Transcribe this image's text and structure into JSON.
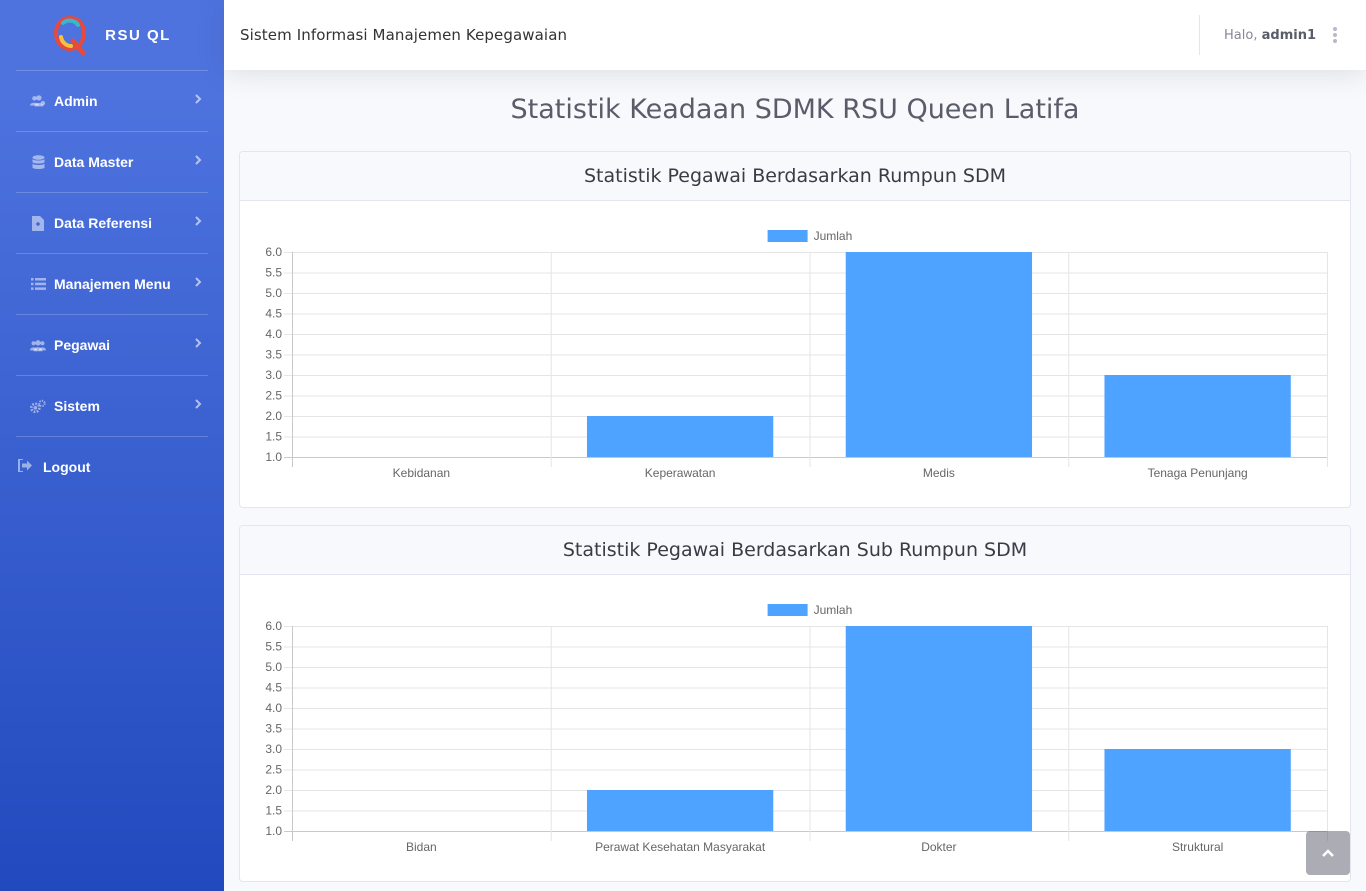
{
  "brand": {
    "name": "RSU QL",
    "logo_icon": "hospital-logo-icon"
  },
  "sidebar": {
    "items": [
      {
        "label": "Admin",
        "icon": "users-cog-icon"
      },
      {
        "label": "Data Master",
        "icon": "database-icon"
      },
      {
        "label": "Data Referensi",
        "icon": "file-icon"
      },
      {
        "label": "Manajemen Menu",
        "icon": "list-icon"
      },
      {
        "label": "Pegawai",
        "icon": "users-icon"
      },
      {
        "label": "Sistem",
        "icon": "cogs-icon"
      }
    ],
    "logout": {
      "label": "Logout",
      "icon": "sign-out-icon"
    }
  },
  "topbar": {
    "title": "Sistem Informasi Manajemen Kepegawaian",
    "greeting": "Halo,",
    "username": "admin1"
  },
  "page": {
    "title": "Statistik Keadaan SDMK RSU Queen Latifa"
  },
  "colors": {
    "sidebar_top": "#4e73df",
    "sidebar_bottom": "#224abe",
    "bar": "#4da3ff"
  },
  "chart_data": [
    {
      "type": "bar",
      "title": "Statistik Pegawai Berdasarkan Rumpun SDM",
      "categories": [
        "Kebidanan",
        "Keperawatan",
        "Medis",
        "Tenaga Penunjang"
      ],
      "series": [
        {
          "name": "Jumlah",
          "values": [
            1,
            2,
            6,
            3
          ]
        }
      ],
      "yticks": [
        "6.0",
        "5.5",
        "5.0",
        "4.5",
        "4.0",
        "3.5",
        "3.0",
        "2.5",
        "2.0",
        "1.5",
        "1.0"
      ],
      "ylim": [
        1,
        6
      ],
      "legend": "top",
      "grid": true
    },
    {
      "type": "bar",
      "title": "Statistik Pegawai Berdasarkan Sub Rumpun SDM",
      "categories": [
        "Bidan",
        "Perawat Kesehatan Masyarakat",
        "Dokter",
        "Struktural"
      ],
      "series": [
        {
          "name": "Jumlah",
          "values": [
            1,
            2,
            6,
            3
          ]
        }
      ],
      "yticks": [
        "6.0",
        "5.5",
        "5.0",
        "4.5",
        "4.0",
        "3.5",
        "3.0",
        "2.5",
        "2.0",
        "1.5",
        "1.0"
      ],
      "ylim": [
        1,
        6
      ],
      "legend": "top",
      "grid": true
    }
  ]
}
